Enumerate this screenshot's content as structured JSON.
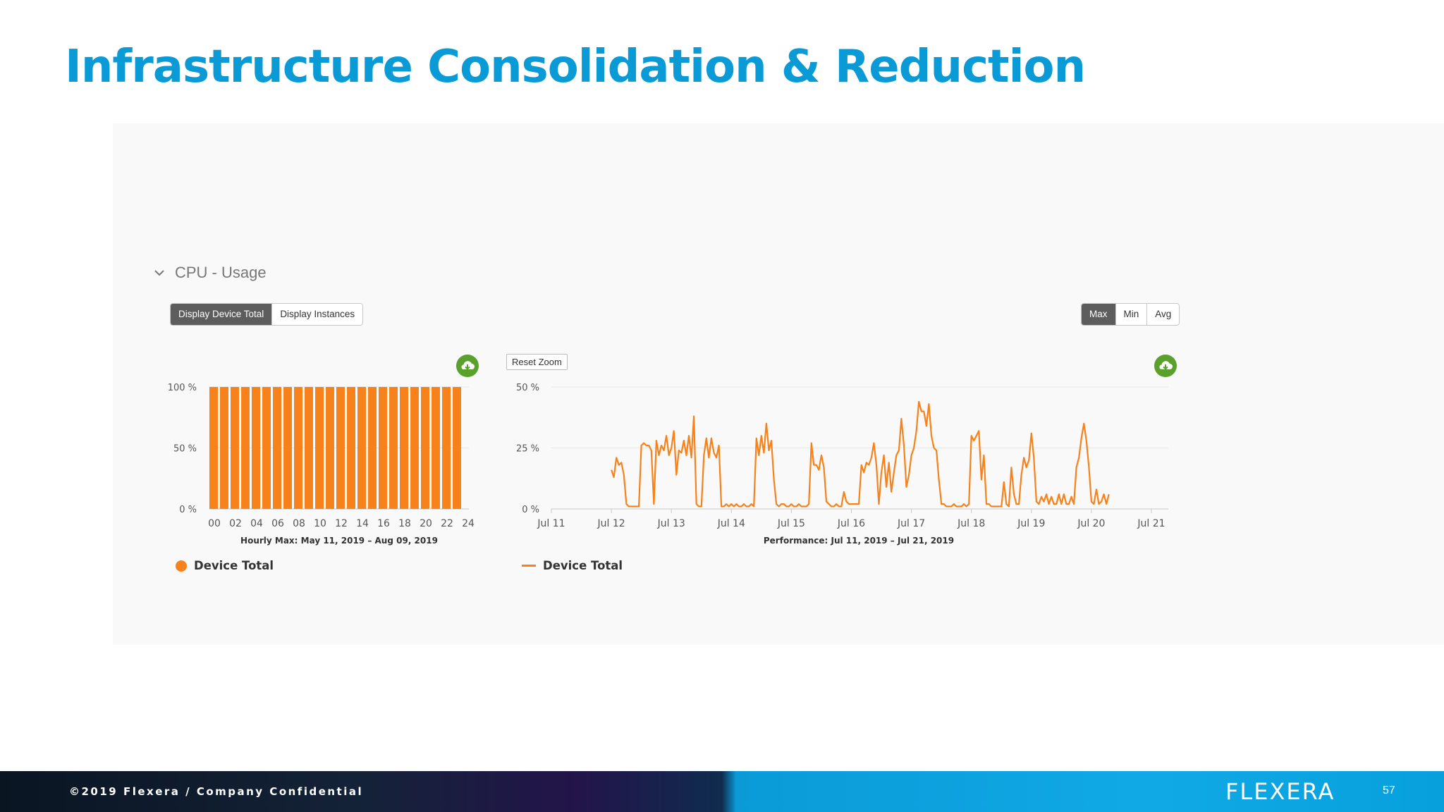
{
  "slide": {
    "title": "Infrastructure Consolidation & Reduction"
  },
  "section": {
    "title": "CPU - Usage"
  },
  "toolbar": {
    "display_device_total": "Display Device Total",
    "display_instances": "Display Instances",
    "max": "Max",
    "min": "Min",
    "avg": "Avg",
    "reset_zoom": "Reset Zoom"
  },
  "icons": {
    "collapse": "chevron-down-icon",
    "download": "cloud-download-icon"
  },
  "colors": {
    "accent": "#0a9bd7",
    "series": "#f7821b",
    "download_button": "#5aa02c",
    "active_button": "#5d5d5d"
  },
  "chart_data": [
    {
      "type": "bar",
      "title": "",
      "xlabel": "Hourly Max: May 11, 2019 – Aug 09, 2019",
      "ylabel": "",
      "categories": [
        "00",
        "01",
        "02",
        "03",
        "04",
        "05",
        "06",
        "07",
        "08",
        "09",
        "10",
        "11",
        "12",
        "13",
        "14",
        "15",
        "16",
        "17",
        "18",
        "19",
        "20",
        "21",
        "22",
        "23"
      ],
      "x_tick_labels": [
        "00",
        "02",
        "04",
        "06",
        "08",
        "10",
        "12",
        "14",
        "16",
        "18",
        "20",
        "22",
        "24"
      ],
      "y_tick_labels": [
        "100 %",
        "50 %",
        "0 %"
      ],
      "ylim": [
        0,
        100
      ],
      "series": [
        {
          "name": "Device Total",
          "values": [
            100,
            100,
            100,
            100,
            100,
            100,
            100,
            100,
            100,
            100,
            100,
            100,
            100,
            100,
            100,
            100,
            100,
            100,
            100,
            100,
            100,
            100,
            100,
            100
          ]
        }
      ],
      "grid": true,
      "legend": "bottom-left"
    },
    {
      "type": "line",
      "title": "",
      "xlabel": "Performance: Jul 11, 2019 – Jul 21, 2019",
      "ylabel": "",
      "x_tick_labels": [
        "Jul 11",
        "Jul 12",
        "Jul 13",
        "Jul 14",
        "Jul 15",
        "Jul 16",
        "Jul 17",
        "Jul 18",
        "Jul 19",
        "Jul 20",
        "Jul 21"
      ],
      "y_tick_labels": [
        "50 %",
        "25 %",
        "0 %"
      ],
      "ylim": [
        0,
        50
      ],
      "series": [
        {
          "name": "Device Total",
          "points": [
            [
              "Jul 12 00:00",
              16
            ],
            [
              "Jul 12 01:00",
              13
            ],
            [
              "Jul 12 02:00",
              21
            ],
            [
              "Jul 12 03:00",
              18
            ],
            [
              "Jul 12 04:00",
              19
            ],
            [
              "Jul 12 05:00",
              14
            ],
            [
              "Jul 12 06:00",
              2
            ],
            [
              "Jul 12 07:00",
              1
            ],
            [
              "Jul 12 08:00",
              1
            ],
            [
              "Jul 12 09:00",
              1
            ],
            [
              "Jul 12 10:00",
              1
            ],
            [
              "Jul 12 11:00",
              1
            ],
            [
              "Jul 12 12:00",
              26
            ],
            [
              "Jul 12 13:00",
              27
            ],
            [
              "Jul 12 14:00",
              26
            ],
            [
              "Jul 12 15:00",
              26
            ],
            [
              "Jul 12 16:00",
              24
            ],
            [
              "Jul 12 17:00",
              2
            ],
            [
              "Jul 12 18:00",
              28
            ],
            [
              "Jul 12 19:00",
              22
            ],
            [
              "Jul 12 20:00",
              26
            ],
            [
              "Jul 12 21:00",
              24
            ],
            [
              "Jul 12 22:00",
              30
            ],
            [
              "Jul 12 23:00",
              22
            ],
            [
              "Jul 13 00:00",
              25
            ],
            [
              "Jul 13 01:00",
              32
            ],
            [
              "Jul 13 02:00",
              14
            ],
            [
              "Jul 13 03:00",
              24
            ],
            [
              "Jul 13 04:00",
              23
            ],
            [
              "Jul 13 05:00",
              28
            ],
            [
              "Jul 13 06:00",
              22
            ],
            [
              "Jul 13 07:00",
              30
            ],
            [
              "Jul 13 08:00",
              21
            ],
            [
              "Jul 13 09:00",
              38
            ],
            [
              "Jul 13 10:00",
              2
            ],
            [
              "Jul 13 11:00",
              1
            ],
            [
              "Jul 13 12:00",
              1
            ],
            [
              "Jul 13 13:00",
              22
            ],
            [
              "Jul 13 14:00",
              29
            ],
            [
              "Jul 13 15:00",
              21
            ],
            [
              "Jul 13 16:00",
              29
            ],
            [
              "Jul 13 17:00",
              23
            ],
            [
              "Jul 13 18:00",
              21
            ],
            [
              "Jul 13 19:00",
              26
            ],
            [
              "Jul 13 20:00",
              1
            ],
            [
              "Jul 13 21:00",
              1
            ],
            [
              "Jul 13 22:00",
              2
            ],
            [
              "Jul 13 23:00",
              1
            ],
            [
              "Jul 14 00:00",
              2
            ],
            [
              "Jul 14 01:00",
              1
            ],
            [
              "Jul 14 02:00",
              2
            ],
            [
              "Jul 14 03:00",
              1
            ],
            [
              "Jul 14 04:00",
              1
            ],
            [
              "Jul 14 05:00",
              2
            ],
            [
              "Jul 14 06:00",
              1
            ],
            [
              "Jul 14 07:00",
              1
            ],
            [
              "Jul 14 08:00",
              2
            ],
            [
              "Jul 14 09:00",
              1
            ],
            [
              "Jul 14 10:00",
              29
            ],
            [
              "Jul 14 11:00",
              22
            ],
            [
              "Jul 14 12:00",
              30
            ],
            [
              "Jul 14 13:00",
              23
            ],
            [
              "Jul 14 14:00",
              35
            ],
            [
              "Jul 14 15:00",
              24
            ],
            [
              "Jul 14 16:00",
              28
            ],
            [
              "Jul 14 17:00",
              12
            ],
            [
              "Jul 14 18:00",
              2
            ],
            [
              "Jul 14 19:00",
              1
            ],
            [
              "Jul 14 20:00",
              2
            ],
            [
              "Jul 14 21:00",
              2
            ],
            [
              "Jul 14 22:00",
              1
            ],
            [
              "Jul 14 23:00",
              1
            ],
            [
              "Jul 15 00:00",
              2
            ],
            [
              "Jul 15 01:00",
              1
            ],
            [
              "Jul 15 02:00",
              1
            ],
            [
              "Jul 15 03:00",
              2
            ],
            [
              "Jul 15 04:00",
              1
            ],
            [
              "Jul 15 05:00",
              1
            ],
            [
              "Jul 15 06:00",
              1
            ],
            [
              "Jul 15 07:00",
              2
            ],
            [
              "Jul 15 08:00",
              27
            ],
            [
              "Jul 15 09:00",
              18
            ],
            [
              "Jul 15 10:00",
              18
            ],
            [
              "Jul 15 11:00",
              16
            ],
            [
              "Jul 15 12:00",
              22
            ],
            [
              "Jul 15 13:00",
              17
            ],
            [
              "Jul 15 14:00",
              3
            ],
            [
              "Jul 15 15:00",
              2
            ],
            [
              "Jul 15 16:00",
              1
            ],
            [
              "Jul 15 17:00",
              1
            ],
            [
              "Jul 15 18:00",
              2
            ],
            [
              "Jul 15 19:00",
              1
            ],
            [
              "Jul 15 20:00",
              1
            ],
            [
              "Jul 15 21:00",
              7
            ],
            [
              "Jul 15 22:00",
              3
            ],
            [
              "Jul 15 23:00",
              2
            ],
            [
              "Jul 16 00:00",
              2
            ],
            [
              "Jul 16 01:00",
              2
            ],
            [
              "Jul 16 02:00",
              2
            ],
            [
              "Jul 16 03:00",
              2
            ],
            [
              "Jul 16 04:00",
              18
            ],
            [
              "Jul 16 05:00",
              15
            ],
            [
              "Jul 16 06:00",
              19
            ],
            [
              "Jul 16 07:00",
              18
            ],
            [
              "Jul 16 08:00",
              21
            ],
            [
              "Jul 16 09:00",
              27
            ],
            [
              "Jul 16 10:00",
              18
            ],
            [
              "Jul 16 11:00",
              2
            ],
            [
              "Jul 16 12:00",
              15
            ],
            [
              "Jul 16 13:00",
              22
            ],
            [
              "Jul 16 14:00",
              9
            ],
            [
              "Jul 16 15:00",
              19
            ],
            [
              "Jul 16 16:00",
              7
            ],
            [
              "Jul 16 17:00",
              15
            ],
            [
              "Jul 16 18:00",
              22
            ],
            [
              "Jul 16 19:00",
              24
            ],
            [
              "Jul 16 20:00",
              37
            ],
            [
              "Jul 16 21:00",
              26
            ],
            [
              "Jul 16 22:00",
              9
            ],
            [
              "Jul 16 23:00",
              14
            ],
            [
              "Jul 17 00:00",
              22
            ],
            [
              "Jul 17 01:00",
              25
            ],
            [
              "Jul 17 02:00",
              32
            ],
            [
              "Jul 17 03:00",
              44
            ],
            [
              "Jul 17 04:00",
              40
            ],
            [
              "Jul 17 05:00",
              40
            ],
            [
              "Jul 17 06:00",
              34
            ],
            [
              "Jul 17 07:00",
              43
            ],
            [
              "Jul 17 08:00",
              30
            ],
            [
              "Jul 17 09:00",
              25
            ],
            [
              "Jul 17 10:00",
              24
            ],
            [
              "Jul 17 11:00",
              12
            ],
            [
              "Jul 17 12:00",
              2
            ],
            [
              "Jul 17 13:00",
              2
            ],
            [
              "Jul 17 14:00",
              1
            ],
            [
              "Jul 17 15:00",
              1
            ],
            [
              "Jul 17 16:00",
              1
            ],
            [
              "Jul 17 17:00",
              2
            ],
            [
              "Jul 17 18:00",
              1
            ],
            [
              "Jul 17 19:00",
              1
            ],
            [
              "Jul 17 20:00",
              1
            ],
            [
              "Jul 17 21:00",
              2
            ],
            [
              "Jul 17 22:00",
              1
            ],
            [
              "Jul 17 23:00",
              2
            ],
            [
              "Jul 18 00:00",
              30
            ],
            [
              "Jul 18 01:00",
              28
            ],
            [
              "Jul 18 02:00",
              30
            ],
            [
              "Jul 18 03:00",
              32
            ],
            [
              "Jul 18 04:00",
              12
            ],
            [
              "Jul 18 05:00",
              22
            ],
            [
              "Jul 18 06:00",
              2
            ],
            [
              "Jul 18 07:00",
              2
            ],
            [
              "Jul 18 08:00",
              1
            ],
            [
              "Jul 18 09:00",
              1
            ],
            [
              "Jul 18 10:00",
              1
            ],
            [
              "Jul 18 11:00",
              1
            ],
            [
              "Jul 18 12:00",
              1
            ],
            [
              "Jul 18 13:00",
              11
            ],
            [
              "Jul 18 14:00",
              2
            ],
            [
              "Jul 18 15:00",
              1
            ],
            [
              "Jul 18 16:00",
              17
            ],
            [
              "Jul 18 17:00",
              6
            ],
            [
              "Jul 18 18:00",
              2
            ],
            [
              "Jul 18 19:00",
              2
            ],
            [
              "Jul 18 20:00",
              14
            ],
            [
              "Jul 18 21:00",
              21
            ],
            [
              "Jul 18 22:00",
              17
            ],
            [
              "Jul 18 23:00",
              20
            ],
            [
              "Jul 19 00:00",
              31
            ],
            [
              "Jul 19 01:00",
              21
            ],
            [
              "Jul 19 02:00",
              3
            ],
            [
              "Jul 19 03:00",
              2
            ],
            [
              "Jul 19 04:00",
              5
            ],
            [
              "Jul 19 05:00",
              3
            ],
            [
              "Jul 19 06:00",
              6
            ],
            [
              "Jul 19 07:00",
              2
            ],
            [
              "Jul 19 08:00",
              5
            ],
            [
              "Jul 19 09:00",
              2
            ],
            [
              "Jul 19 10:00",
              2
            ],
            [
              "Jul 19 11:00",
              6
            ],
            [
              "Jul 19 12:00",
              2
            ],
            [
              "Jul 19 13:00",
              6
            ],
            [
              "Jul 19 14:00",
              2
            ],
            [
              "Jul 19 15:00",
              2
            ],
            [
              "Jul 19 16:00",
              5
            ],
            [
              "Jul 19 17:00",
              2
            ],
            [
              "Jul 19 18:00",
              17
            ],
            [
              "Jul 19 19:00",
              21
            ],
            [
              "Jul 19 20:00",
              29
            ],
            [
              "Jul 19 21:00",
              35
            ],
            [
              "Jul 19 22:00",
              28
            ],
            [
              "Jul 19 23:00",
              17
            ],
            [
              "Jul 20 00:00",
              3
            ],
            [
              "Jul 20 01:00",
              2
            ],
            [
              "Jul 20 02:00",
              8
            ],
            [
              "Jul 20 03:00",
              2
            ],
            [
              "Jul 20 04:00",
              3
            ],
            [
              "Jul 20 05:00",
              6
            ],
            [
              "Jul 20 06:00",
              2
            ],
            [
              "Jul 20 07:00",
              6
            ]
          ]
        }
      ],
      "grid": true,
      "legend": "bottom-left"
    }
  ],
  "footer": {
    "text": "©2019 Flexera / Company Confidential",
    "logo": "FLEXERA",
    "page": "57"
  }
}
